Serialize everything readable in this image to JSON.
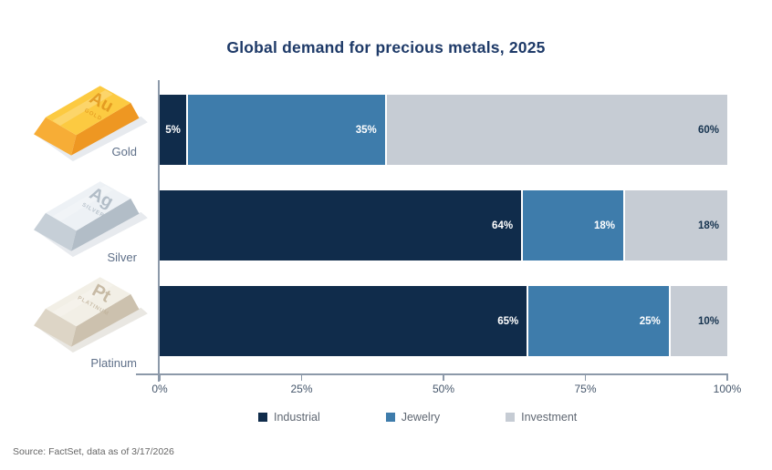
{
  "title": "Global demand for precious metals, 2025",
  "source": "Source: FactSet, data as of 3/17/2026",
  "palette": {
    "title": "#1e3a68",
    "axis_line": "#8c99a9",
    "tick_label": "#45566b",
    "metal_label": "#5f7089",
    "legend_label": "#5f6772",
    "source": "#666666",
    "segment_separator": "#ffffff",
    "label_on_investment": "#16334f",
    "label_on_dark": "#ffffff"
  },
  "chart_data": {
    "type": "bar",
    "orientation": "horizontal",
    "stacked": true,
    "title": "Global demand for precious metals, 2025",
    "categories": [
      "Gold",
      "Silver",
      "Platinum"
    ],
    "series": [
      {
        "name": "Industrial",
        "values": [
          5,
          64,
          65
        ],
        "color": "#102c4b",
        "label_color": "#ffffff"
      },
      {
        "name": "Jewelry",
        "values": [
          35,
          18,
          25
        ],
        "color": "#3e7cab",
        "label_color": "#ffffff"
      },
      {
        "name": "Investment",
        "values": [
          60,
          18,
          10
        ],
        "color": "#c6ccd4",
        "label_color": "#16334f"
      }
    ],
    "value_suffix": "%",
    "x_ticks": [
      "0%",
      "25%",
      "50%",
      "75%",
      "100%"
    ],
    "xlim": [
      0,
      100
    ],
    "grid": false,
    "legend_position": "bottom",
    "value_labels": "inside-right"
  },
  "metals": [
    {
      "name": "Gold",
      "symbol": "Au",
      "engraving": "GOLD",
      "colors": {
        "top": "#fcca41",
        "front": "#f7ad36",
        "side": "#ee9722",
        "text": "#e0951c",
        "shadow": "#e7eaee"
      }
    },
    {
      "name": "Silver",
      "symbol": "Ag",
      "engraving": "SILVER",
      "colors": {
        "top": "#edf1f5",
        "front": "#c6cfd7",
        "side": "#b2bdc7",
        "text": "#a8b4bf",
        "shadow": "#e7eaee"
      }
    },
    {
      "name": "Platinum",
      "symbol": "Pt",
      "engraving": "PLATINUM",
      "colors": {
        "top": "#f2efe6",
        "front": "#ddd5c6",
        "side": "#ccc1ae",
        "text": "#bfb199",
        "shadow": "#e9e7e2"
      }
    }
  ],
  "legend": {
    "items": [
      {
        "label": "Industrial"
      },
      {
        "label": "Jewelry"
      },
      {
        "label": "Investment"
      }
    ]
  }
}
